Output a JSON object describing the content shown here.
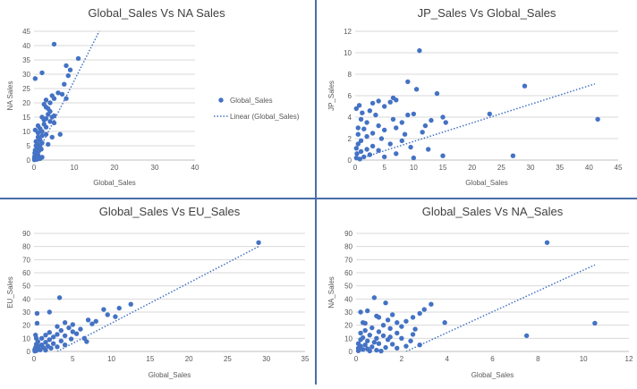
{
  "colors": {
    "series": "#4472c4",
    "grid": "#d9d9d9",
    "text": "#595959",
    "title": "#404040"
  },
  "chart_data": [
    {
      "type": "scatter",
      "title": "Global_Sales Vs NA Sales",
      "xlabel": "Global_Sales",
      "ylabel": "NA Sales",
      "xlim": [
        0,
        40
      ],
      "ylim": [
        0,
        45
      ],
      "xticks": [
        0,
        10,
        20,
        30,
        40
      ],
      "yticks": [
        0,
        5,
        10,
        15,
        20,
        25,
        30,
        35,
        40,
        45
      ],
      "grid": true,
      "legend": {
        "placement": "right",
        "entries": [
          "Global_Sales",
          "Linear (Global_Sales)"
        ]
      },
      "trendline": {
        "x": [
          0,
          16.2
        ],
        "y": [
          0,
          45
        ]
      },
      "series": [
        {
          "name": "Global_Sales",
          "points": [
            [
              5.0,
              40.5
            ],
            [
              0.3,
              28.5
            ],
            [
              2.0,
              30.5
            ],
            [
              8.0,
              33.0
            ],
            [
              9.0,
              31.5
            ],
            [
              11.0,
              35.5
            ],
            [
              8.5,
              29.5
            ],
            [
              7.5,
              26.5
            ],
            [
              6.0,
              23.5
            ],
            [
              7.0,
              23.0
            ],
            [
              4.5,
              22.5
            ],
            [
              8.0,
              21.5
            ],
            [
              5.0,
              21.5
            ],
            [
              3.0,
              21.0
            ],
            [
              4.0,
              20.0
            ],
            [
              3.0,
              18.5
            ],
            [
              2.5,
              19.5
            ],
            [
              4.0,
              17.0
            ],
            [
              3.5,
              16.0
            ],
            [
              5.0,
              15.5
            ],
            [
              3.0,
              14.5
            ],
            [
              2.0,
              15.0
            ],
            [
              4.0,
              13.5
            ],
            [
              5.0,
              13.0
            ],
            [
              2.5,
              12.5
            ],
            [
              3.0,
              11.5
            ],
            [
              1.5,
              11.0
            ],
            [
              2.0,
              10.0
            ],
            [
              1.0,
              9.5
            ],
            [
              3.0,
              9.0
            ],
            [
              2.0,
              8.5
            ],
            [
              1.0,
              8.0
            ],
            [
              1.5,
              7.0
            ],
            [
              0.5,
              6.5
            ],
            [
              2.0,
              6.0
            ],
            [
              1.0,
              5.5
            ],
            [
              0.5,
              5.0
            ],
            [
              1.5,
              4.5
            ],
            [
              0.8,
              4.0
            ],
            [
              0.3,
              3.5
            ],
            [
              1.2,
              3.2
            ],
            [
              0.5,
              3.0
            ],
            [
              0.2,
              2.5
            ],
            [
              0.8,
              2.2
            ],
            [
              0.4,
              2.0
            ],
            [
              1.0,
              1.8
            ],
            [
              0.2,
              1.5
            ],
            [
              0.6,
              1.2
            ],
            [
              0.3,
              1.0
            ],
            [
              0.1,
              0.8
            ],
            [
              0.5,
              0.6
            ],
            [
              0.2,
              0.4
            ],
            [
              0.8,
              0.3
            ],
            [
              0.4,
              0.2
            ],
            [
              0.1,
              0.1
            ],
            [
              1.5,
              0.5
            ],
            [
              2.0,
              1.0
            ],
            [
              0.7,
              2.7
            ],
            [
              1.8,
              3.8
            ],
            [
              0.3,
              10.5
            ],
            [
              1.0,
              12.0
            ],
            [
              4.5,
              8.0
            ],
            [
              3.5,
              5.5
            ],
            [
              6.5,
              9.0
            ],
            [
              2.5,
              14.0
            ],
            [
              3.5,
              18.0
            ],
            [
              4.5,
              15.0
            ]
          ]
        }
      ]
    },
    {
      "type": "scatter",
      "title": "JP_Sales Vs Global_Sales",
      "xlabel": "Global_Sales",
      "ylabel": "JP_Sales",
      "xlim": [
        0,
        45
      ],
      "ylim": [
        0,
        12
      ],
      "xticks": [
        0,
        5,
        10,
        15,
        20,
        25,
        30,
        35,
        40,
        45
      ],
      "yticks": [
        0,
        2,
        4,
        6,
        8,
        10,
        12
      ],
      "grid": true,
      "trendline": {
        "x": [
          0,
          41
        ],
        "y": [
          0,
          7.1
        ]
      },
      "series": [
        {
          "name": "Global_Sales",
          "points": [
            [
              11.0,
              10.2
            ],
            [
              9.0,
              7.3
            ],
            [
              10.5,
              6.6
            ],
            [
              14.0,
              6.2
            ],
            [
              29.0,
              6.9
            ],
            [
              6.5,
              5.8
            ],
            [
              6.0,
              5.4
            ],
            [
              7.0,
              5.6
            ],
            [
              4.0,
              5.5
            ],
            [
              3.0,
              5.3
            ],
            [
              5.0,
              5.0
            ],
            [
              0.2,
              4.8
            ],
            [
              9.0,
              4.2
            ],
            [
              10.0,
              4.3
            ],
            [
              15.0,
              4.0
            ],
            [
              13.0,
              3.7
            ],
            [
              23.0,
              4.3
            ],
            [
              41.5,
              3.8
            ],
            [
              12.0,
              3.2
            ],
            [
              15.5,
              3.5
            ],
            [
              8.0,
              3.5
            ],
            [
              7.0,
              3.0
            ],
            [
              5.0,
              2.8
            ],
            [
              2.0,
              3.5
            ],
            [
              1.0,
              3.8
            ],
            [
              0.5,
              3.0
            ],
            [
              3.0,
              2.5
            ],
            [
              4.5,
              2.0
            ],
            [
              2.0,
              2.2
            ],
            [
              1.0,
              1.8
            ],
            [
              6.0,
              1.5
            ],
            [
              8.0,
              1.8
            ],
            [
              3.0,
              1.3
            ],
            [
              0.5,
              1.5
            ],
            [
              2.0,
              1.0
            ],
            [
              1.0,
              0.8
            ],
            [
              4.0,
              0.9
            ],
            [
              0.3,
              0.6
            ],
            [
              2.5,
              0.5
            ],
            [
              1.5,
              0.3
            ],
            [
              0.2,
              0.2
            ],
            [
              0.8,
              0.1
            ],
            [
              5.0,
              0.3
            ],
            [
              7.0,
              0.6
            ],
            [
              10.0,
              0.2
            ],
            [
              15.0,
              0.4
            ],
            [
              27.0,
              0.4
            ],
            [
              9.5,
              1.2
            ],
            [
              11.5,
              2.6
            ],
            [
              0.5,
              2.4
            ],
            [
              1.5,
              2.9
            ],
            [
              3.5,
              4.2
            ],
            [
              2.5,
              4.6
            ],
            [
              6.5,
              3.8
            ],
            [
              8.5,
              2.4
            ],
            [
              0.2,
              1.1
            ],
            [
              1.2,
              4.4
            ],
            [
              4.0,
              3.2
            ],
            [
              12.5,
              1.0
            ],
            [
              0.7,
              5.1
            ]
          ]
        }
      ]
    },
    {
      "type": "scatter",
      "title": "Global_Sales Vs EU_Sales",
      "xlabel": "Global_Sales",
      "ylabel": "EU_Sales",
      "xlim": [
        0,
        35
      ],
      "ylim": [
        0,
        90
      ],
      "xticks": [
        0,
        5,
        10,
        15,
        20,
        25,
        30,
        35
      ],
      "yticks": [
        0,
        10,
        20,
        30,
        40,
        50,
        60,
        70,
        80,
        90
      ],
      "grid": true,
      "trendline": {
        "x": [
          3,
          29
        ],
        "y": [
          0,
          80
        ]
      },
      "series": [
        {
          "name": "Global_Sales",
          "points": [
            [
              29.0,
              83.0
            ],
            [
              3.3,
              41.0
            ],
            [
              12.5,
              36.0
            ],
            [
              9.0,
              32.0
            ],
            [
              11.0,
              33.0
            ],
            [
              0.4,
              29.0
            ],
            [
              2.0,
              30.0
            ],
            [
              9.5,
              28.0
            ],
            [
              10.5,
              26.5
            ],
            [
              7.0,
              24.0
            ],
            [
              8.0,
              23.0
            ],
            [
              4.0,
              22.0
            ],
            [
              0.4,
              21.5
            ],
            [
              5.0,
              20.5
            ],
            [
              3.0,
              19.0
            ],
            [
              4.5,
              18.0
            ],
            [
              6.0,
              17.0
            ],
            [
              3.5,
              16.0
            ],
            [
              5.0,
              15.0
            ],
            [
              2.0,
              14.5
            ],
            [
              3.0,
              13.0
            ],
            [
              4.0,
              12.0
            ],
            [
              1.5,
              12.5
            ],
            [
              2.5,
              11.0
            ],
            [
              6.5,
              10.0
            ],
            [
              1.0,
              10.0
            ],
            [
              2.0,
              9.0
            ],
            [
              3.5,
              8.0
            ],
            [
              0.5,
              7.5
            ],
            [
              1.5,
              7.0
            ],
            [
              2.5,
              6.0
            ],
            [
              0.3,
              5.5
            ],
            [
              1.0,
              5.0
            ],
            [
              4.0,
              5.0
            ],
            [
              0.6,
              4.0
            ],
            [
              1.8,
              4.0
            ],
            [
              0.2,
              3.0
            ],
            [
              1.2,
              3.0
            ],
            [
              0.5,
              2.0
            ],
            [
              2.2,
              2.5
            ],
            [
              0.1,
              1.5
            ],
            [
              0.8,
              1.2
            ],
            [
              1.5,
              1.0
            ],
            [
              0.3,
              0.6
            ],
            [
              0.1,
              0.3
            ],
            [
              3.0,
              3.5
            ],
            [
              0.3,
              10.0
            ],
            [
              6.8,
              7.5
            ],
            [
              0.2,
              12.5
            ],
            [
              4.8,
              9.5
            ],
            [
              5.5,
              13.5
            ],
            [
              7.5,
              21.0
            ]
          ]
        }
      ]
    },
    {
      "type": "scatter",
      "title": "Global_Sales Vs NA_Sales",
      "xlabel": "Global_Sales",
      "ylabel": "NA_Sales",
      "xlim": [
        0,
        12
      ],
      "ylim": [
        0,
        90
      ],
      "xticks": [
        0,
        2,
        4,
        6,
        8,
        10,
        12
      ],
      "yticks": [
        0,
        10,
        20,
        30,
        40,
        50,
        60,
        70,
        80,
        90
      ],
      "grid": true,
      "trendline": {
        "x": [
          2.2,
          10.5
        ],
        "y": [
          0,
          66
        ]
      },
      "series": [
        {
          "name": "Global_Sales",
          "points": [
            [
              8.4,
              83.0
            ],
            [
              10.5,
              21.5
            ],
            [
              7.5,
              12.0
            ],
            [
              0.8,
              41.0
            ],
            [
              1.3,
              37.0
            ],
            [
              3.3,
              36.0
            ],
            [
              3.0,
              32.0
            ],
            [
              0.5,
              31.0
            ],
            [
              0.2,
              30.0
            ],
            [
              2.8,
              29.0
            ],
            [
              1.6,
              28.0
            ],
            [
              2.5,
              26.0
            ],
            [
              1.0,
              26.0
            ],
            [
              1.4,
              24.0
            ],
            [
              2.2,
              23.0
            ],
            [
              3.9,
              22.0
            ],
            [
              1.8,
              22.0
            ],
            [
              0.4,
              21.5
            ],
            [
              1.2,
              20.0
            ],
            [
              2.0,
              19.0
            ],
            [
              0.7,
              18.0
            ],
            [
              1.5,
              17.5
            ],
            [
              2.6,
              17.0
            ],
            [
              0.4,
              16.0
            ],
            [
              1.0,
              15.0
            ],
            [
              1.8,
              14.0
            ],
            [
              0.2,
              14.0
            ],
            [
              2.5,
              13.0
            ],
            [
              0.6,
              12.5
            ],
            [
              1.2,
              12.0
            ],
            [
              1.5,
              11.0
            ],
            [
              0.3,
              10.5
            ],
            [
              0.9,
              10.0
            ],
            [
              2.0,
              10.0
            ],
            [
              0.2,
              9.0
            ],
            [
              1.4,
              9.0
            ],
            [
              0.5,
              8.0
            ],
            [
              2.4,
              8.0
            ],
            [
              0.8,
              7.0
            ],
            [
              0.1,
              6.0
            ],
            [
              1.0,
              6.0
            ],
            [
              0.4,
              5.0
            ],
            [
              1.6,
              5.5
            ],
            [
              2.8,
              5.0
            ],
            [
              0.2,
              4.0
            ],
            [
              0.7,
              3.5
            ],
            [
              1.3,
              3.0
            ],
            [
              0.1,
              2.5
            ],
            [
              0.5,
              2.0
            ],
            [
              1.8,
              2.5
            ],
            [
              0.3,
              1.5
            ],
            [
              0.9,
              1.0
            ],
            [
              0.1,
              0.5
            ],
            [
              0.6,
              0.4
            ],
            [
              1.1,
              0.3
            ],
            [
              2.2,
              4.0
            ],
            [
              0.9,
              27.0
            ],
            [
              0.3,
              22.0
            ]
          ]
        }
      ]
    }
  ]
}
